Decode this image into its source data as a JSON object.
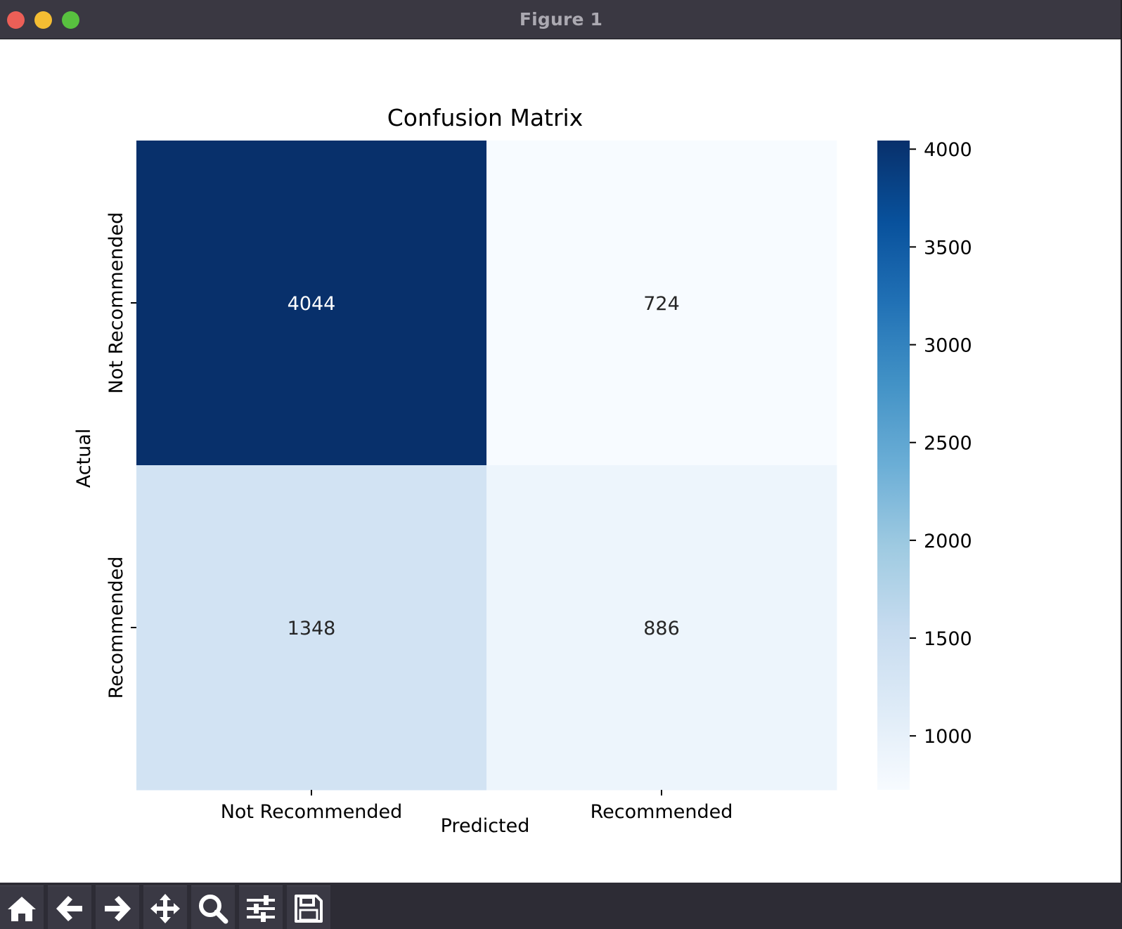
{
  "window": {
    "title": "Figure 1"
  },
  "toolbar": {
    "buttons": [
      {
        "name": "home-button",
        "icon": "home-icon"
      },
      {
        "name": "back-button",
        "icon": "arrow-left-icon"
      },
      {
        "name": "forward-button",
        "icon": "arrow-right-icon"
      },
      {
        "name": "pan-button",
        "icon": "move-icon"
      },
      {
        "name": "zoom-button",
        "icon": "search-icon"
      },
      {
        "name": "configure-subplots-button",
        "icon": "sliders-icon"
      },
      {
        "name": "save-button",
        "icon": "save-icon"
      }
    ]
  },
  "chart_data": {
    "type": "heatmap",
    "title": "Confusion Matrix",
    "xlabel": "Predicted",
    "ylabel": "Actual",
    "x_categories": [
      "Not Recommended",
      "Recommended"
    ],
    "y_categories": [
      "Not Recommended",
      "Recommended"
    ],
    "values": [
      [
        4044,
        724
      ],
      [
        1348,
        886
      ]
    ],
    "colormap": "Blues",
    "vmin": 724,
    "vmax": 4044,
    "colorbar_ticks": [
      1000,
      1500,
      2000,
      2500,
      3000,
      3500,
      4000
    ]
  }
}
